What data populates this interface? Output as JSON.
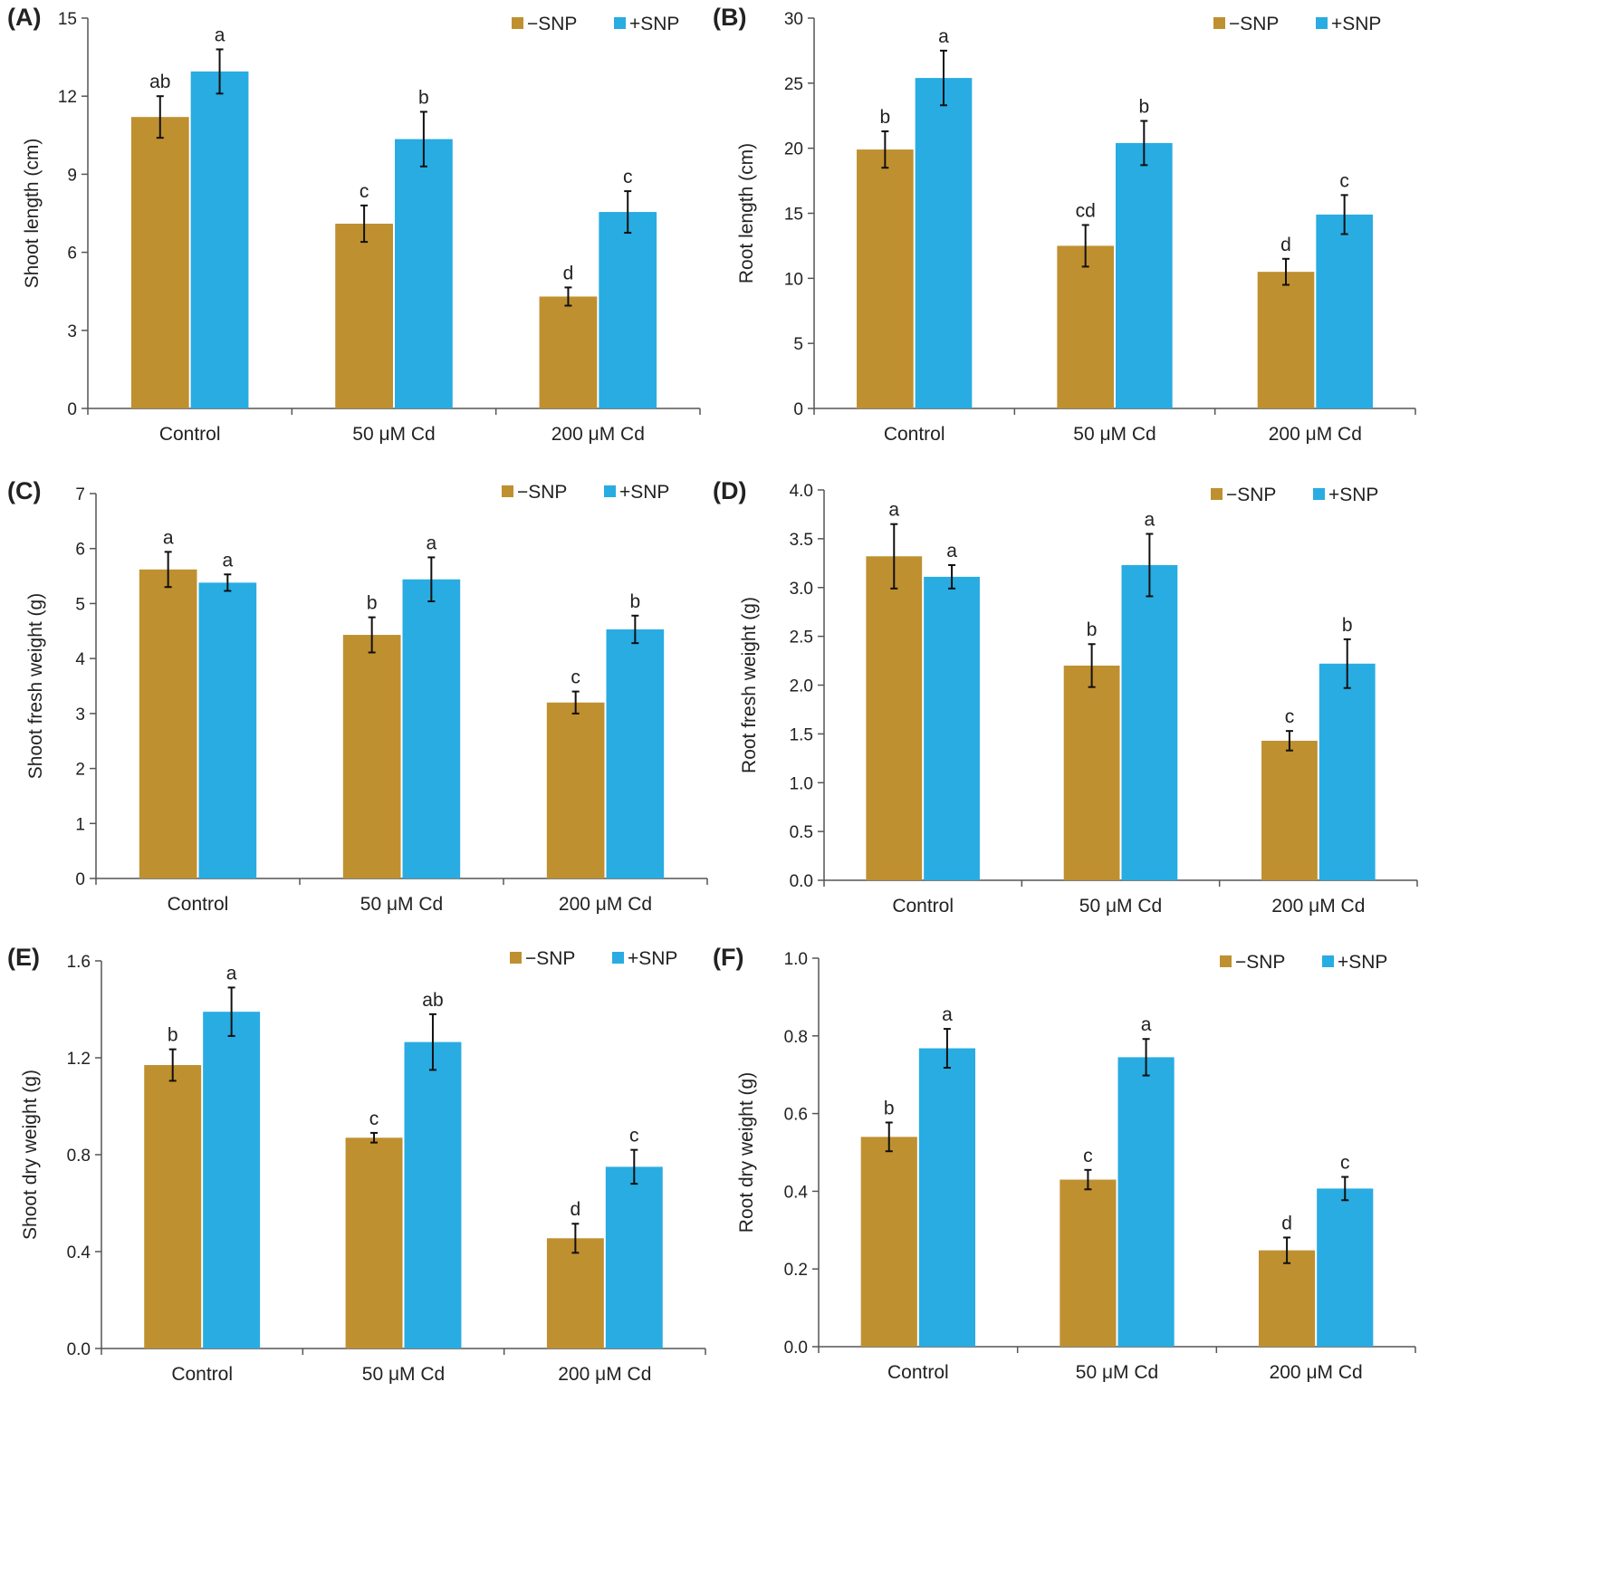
{
  "colors": {
    "minus_snp": "#bf9030",
    "plus_snp": "#28ace2",
    "axis": "#555555",
    "error": "#111111"
  },
  "chart_data": [
    {
      "type": "bar",
      "panel_label": "(A)",
      "ylabel": "Shoot length (cm)",
      "categories": [
        "Control",
        "50 μM Cd",
        "200 μM Cd"
      ],
      "ylim": [
        0,
        15
      ],
      "yticks": [
        "0",
        "3",
        "6",
        "9",
        "12",
        "15"
      ],
      "legend": [
        "−SNP",
        "+SNP"
      ],
      "series": [
        {
          "name": "−SNP",
          "values": [
            11.2,
            7.1,
            4.3
          ],
          "errors": [
            0.8,
            0.7,
            0.35
          ],
          "letters": [
            "ab",
            "c",
            "d"
          ]
        },
        {
          "name": "+SNP",
          "values": [
            12.95,
            10.35,
            7.55
          ],
          "errors": [
            0.85,
            1.05,
            0.8
          ],
          "letters": [
            "a",
            "b",
            "c"
          ]
        }
      ]
    },
    {
      "type": "bar",
      "panel_label": "(B)",
      "ylabel": "Root length (cm)",
      "categories": [
        "Control",
        "50 μM Cd",
        "200 μM Cd"
      ],
      "ylim": [
        0,
        30
      ],
      "yticks": [
        "0",
        "5",
        "10",
        "15",
        "20",
        "25",
        "30"
      ],
      "legend": [
        "−SNP",
        "+SNP"
      ],
      "series": [
        {
          "name": "−SNP",
          "values": [
            19.9,
            12.5,
            10.5
          ],
          "errors": [
            1.4,
            1.6,
            1.0
          ],
          "letters": [
            "b",
            "cd",
            "d"
          ]
        },
        {
          "name": "+SNP",
          "values": [
            25.4,
            20.4,
            14.9
          ],
          "errors": [
            2.1,
            1.7,
            1.5
          ],
          "letters": [
            "a",
            "b",
            "c"
          ]
        }
      ]
    },
    {
      "type": "bar",
      "panel_label": "(C)",
      "ylabel": "Shoot fresh weight (g)",
      "categories": [
        "Control",
        "50 μM Cd",
        "200 μM Cd"
      ],
      "ylim": [
        0,
        7
      ],
      "yticks": [
        "0",
        "1",
        "2",
        "3",
        "4",
        "5",
        "6",
        "7"
      ],
      "legend": [
        "−SNP",
        "+SNP"
      ],
      "series": [
        {
          "name": "−SNP",
          "values": [
            5.62,
            4.43,
            3.2
          ],
          "errors": [
            0.32,
            0.32,
            0.2
          ],
          "letters": [
            "a",
            "b",
            "c"
          ]
        },
        {
          "name": "+SNP",
          "values": [
            5.38,
            5.44,
            4.53
          ],
          "errors": [
            0.15,
            0.4,
            0.25
          ],
          "letters": [
            "a",
            "a",
            "b"
          ]
        }
      ]
    },
    {
      "type": "bar",
      "panel_label": "(D)",
      "ylabel": "Root fresh weight (g)",
      "categories": [
        "Control",
        "50 μM Cd",
        "200 μM Cd"
      ],
      "ylim": [
        0,
        4
      ],
      "yticks": [
        "0.0",
        "0.5",
        "1.0",
        "1.5",
        "2.0",
        "2.5",
        "3.0",
        "3.5",
        "4.0"
      ],
      "legend": [
        "−SNP",
        "+SNP"
      ],
      "series": [
        {
          "name": "−SNP",
          "values": [
            3.32,
            2.2,
            1.43
          ],
          "errors": [
            0.33,
            0.22,
            0.1
          ],
          "letters": [
            "a",
            "b",
            "c"
          ]
        },
        {
          "name": "+SNP",
          "values": [
            3.11,
            3.23,
            2.22
          ],
          "errors": [
            0.12,
            0.32,
            0.25
          ],
          "letters": [
            "a",
            "a",
            "b"
          ]
        }
      ]
    },
    {
      "type": "bar",
      "panel_label": "(E)",
      "ylabel": "Shoot dry weight (g)",
      "categories": [
        "Control",
        "50 μM Cd",
        "200 μM Cd"
      ],
      "ylim": [
        0,
        1.6
      ],
      "yticks": [
        "0.0",
        "0.4",
        "0.8",
        "1.2",
        "1.6"
      ],
      "legend": [
        "−SNP",
        "+SNP"
      ],
      "series": [
        {
          "name": "−SNP",
          "values": [
            1.17,
            0.87,
            0.455
          ],
          "errors": [
            0.065,
            0.02,
            0.06
          ],
          "letters": [
            "b",
            "c",
            "d"
          ]
        },
        {
          "name": "+SNP",
          "values": [
            1.39,
            1.265,
            0.75
          ],
          "errors": [
            0.1,
            0.115,
            0.07
          ],
          "letters": [
            "a",
            "ab",
            "c"
          ]
        }
      ]
    },
    {
      "type": "bar",
      "panel_label": "(F)",
      "ylabel": "Root dry weight (g)",
      "categories": [
        "Control",
        "50 μM Cd",
        "200 μM Cd"
      ],
      "ylim": [
        0,
        1.0
      ],
      "yticks": [
        "0.0",
        "0.2",
        "0.4",
        "0.6",
        "0.8",
        "1.0"
      ],
      "legend": [
        "−SNP",
        "+SNP"
      ],
      "series": [
        {
          "name": "−SNP",
          "values": [
            0.54,
            0.43,
            0.248
          ],
          "errors": [
            0.037,
            0.025,
            0.033
          ],
          "letters": [
            "b",
            "c",
            "d"
          ]
        },
        {
          "name": "+SNP",
          "values": [
            0.768,
            0.745,
            0.407
          ],
          "errors": [
            0.05,
            0.047,
            0.03
          ],
          "letters": [
            "a",
            "a",
            "c"
          ]
        }
      ]
    }
  ]
}
